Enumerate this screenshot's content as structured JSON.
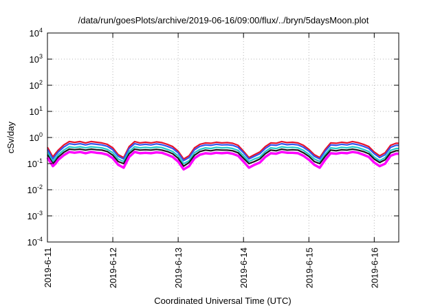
{
  "chart_data": {
    "type": "area",
    "title": "/data/run/goesPlots/archive/2019-06-16/09:00/flux/../bryn/5daysMoon.plot",
    "xlabel": "Coordinated Universal Time (UTC)",
    "ylabel": "cSv/day",
    "yscale": "log",
    "ylim": [
      0.0001,
      10000
    ],
    "xlim": [
      "2019-06-11 00:00",
      "2019-06-16 09:00"
    ],
    "grid": true,
    "y_ticks": [
      {
        "base": "10",
        "exp": "-4"
      },
      {
        "base": "10",
        "exp": "-3"
      },
      {
        "base": "10",
        "exp": "-2"
      },
      {
        "base": "10",
        "exp": "-1"
      },
      {
        "base": "10",
        "exp": "0"
      },
      {
        "base": "10",
        "exp": "1"
      },
      {
        "base": "10",
        "exp": "2"
      },
      {
        "base": "10",
        "exp": "3"
      },
      {
        "base": "10",
        "exp": "4"
      }
    ],
    "x_ticks": [
      "2019-6-11",
      "2019-6-12",
      "2019-6-13",
      "2019-6-14",
      "2019-6-15",
      "2019-6-16"
    ],
    "x": [
      "2019-06-11 00:00",
      "2019-06-11 02:00",
      "2019-06-11 03:00",
      "2019-06-11 04:00",
      "2019-06-11 06:00",
      "2019-06-11 08:00",
      "2019-06-11 10:00",
      "2019-06-11 12:00",
      "2019-06-11 14:00",
      "2019-06-11 16:00",
      "2019-06-11 18:00",
      "2019-06-11 20:00",
      "2019-06-11 22:00",
      "2019-06-12 00:00",
      "2019-06-12 02:00",
      "2019-06-12 04:00",
      "2019-06-12 06:00",
      "2019-06-12 08:00",
      "2019-06-12 10:00",
      "2019-06-12 12:00",
      "2019-06-12 14:00",
      "2019-06-12 16:00",
      "2019-06-12 18:00",
      "2019-06-12 20:00",
      "2019-06-12 22:00",
      "2019-06-13 00:00",
      "2019-06-13 02:00",
      "2019-06-13 04:00",
      "2019-06-13 06:00",
      "2019-06-13 08:00",
      "2019-06-13 10:00",
      "2019-06-13 12:00",
      "2019-06-13 14:00",
      "2019-06-13 16:00",
      "2019-06-13 18:00",
      "2019-06-13 20:00",
      "2019-06-13 22:00",
      "2019-06-14 00:00",
      "2019-06-14 02:00",
      "2019-06-14 04:00",
      "2019-06-14 06:00",
      "2019-06-14 08:00",
      "2019-06-14 10:00",
      "2019-06-14 12:00",
      "2019-06-14 14:00",
      "2019-06-14 16:00",
      "2019-06-14 18:00",
      "2019-06-14 20:00",
      "2019-06-14 22:00",
      "2019-06-15 00:00",
      "2019-06-15 02:00",
      "2019-06-15 04:00",
      "2019-06-15 06:00",
      "2019-06-15 08:00",
      "2019-06-15 10:00",
      "2019-06-15 12:00",
      "2019-06-15 14:00",
      "2019-06-15 16:00",
      "2019-06-15 18:00",
      "2019-06-15 20:00",
      "2019-06-15 22:00",
      "2019-06-16 00:00",
      "2019-06-16 02:00",
      "2019-06-16 04:00",
      "2019-06-16 06:00",
      "2019-06-16 08:00",
      "2019-06-16 09:00"
    ],
    "series": [
      {
        "color": "#e8102a",
        "values": [
          0.42,
          0.18,
          0.25,
          0.33,
          0.52,
          0.7,
          0.65,
          0.7,
          0.62,
          0.7,
          0.66,
          0.62,
          0.55,
          0.4,
          0.22,
          0.17,
          0.45,
          0.7,
          0.62,
          0.66,
          0.62,
          0.68,
          0.64,
          0.55,
          0.45,
          0.3,
          0.15,
          0.2,
          0.4,
          0.55,
          0.62,
          0.6,
          0.66,
          0.62,
          0.64,
          0.6,
          0.5,
          0.3,
          0.17,
          0.22,
          0.28,
          0.45,
          0.62,
          0.6,
          0.7,
          0.64,
          0.66,
          0.62,
          0.5,
          0.35,
          0.22,
          0.17,
          0.35,
          0.62,
          0.6,
          0.66,
          0.62,
          0.7,
          0.64,
          0.55,
          0.45,
          0.28,
          0.2,
          0.26,
          0.5,
          0.6,
          0.6
        ]
      },
      {
        "color": "#3355ee",
        "values": [
          0.35,
          0.15,
          0.21,
          0.28,
          0.43,
          0.58,
          0.54,
          0.58,
          0.52,
          0.58,
          0.55,
          0.52,
          0.46,
          0.34,
          0.19,
          0.15,
          0.38,
          0.58,
          0.52,
          0.55,
          0.52,
          0.57,
          0.53,
          0.46,
          0.38,
          0.26,
          0.13,
          0.17,
          0.34,
          0.46,
          0.52,
          0.5,
          0.55,
          0.52,
          0.53,
          0.5,
          0.42,
          0.26,
          0.15,
          0.19,
          0.24,
          0.38,
          0.52,
          0.5,
          0.58,
          0.53,
          0.55,
          0.52,
          0.42,
          0.3,
          0.19,
          0.15,
          0.3,
          0.52,
          0.5,
          0.55,
          0.52,
          0.58,
          0.53,
          0.46,
          0.38,
          0.24,
          0.17,
          0.22,
          0.42,
          0.5,
          0.5
        ]
      },
      {
        "color": "#22c9c9",
        "values": [
          0.27,
          0.12,
          0.16,
          0.22,
          0.33,
          0.44,
          0.41,
          0.44,
          0.4,
          0.44,
          0.42,
          0.4,
          0.35,
          0.26,
          0.15,
          0.12,
          0.29,
          0.44,
          0.4,
          0.42,
          0.4,
          0.43,
          0.41,
          0.35,
          0.29,
          0.2,
          0.1,
          0.13,
          0.26,
          0.35,
          0.4,
          0.38,
          0.42,
          0.4,
          0.41,
          0.38,
          0.32,
          0.2,
          0.12,
          0.15,
          0.18,
          0.29,
          0.4,
          0.38,
          0.44,
          0.41,
          0.42,
          0.4,
          0.32,
          0.23,
          0.15,
          0.12,
          0.23,
          0.4,
          0.38,
          0.42,
          0.4,
          0.44,
          0.41,
          0.35,
          0.29,
          0.18,
          0.13,
          0.17,
          0.32,
          0.38,
          0.38
        ]
      },
      {
        "color": "#1a1a1a",
        "values": [
          0.22,
          0.1,
          0.13,
          0.18,
          0.27,
          0.36,
          0.34,
          0.36,
          0.33,
          0.36,
          0.34,
          0.33,
          0.29,
          0.21,
          0.12,
          0.1,
          0.24,
          0.36,
          0.33,
          0.34,
          0.33,
          0.35,
          0.33,
          0.29,
          0.24,
          0.16,
          0.08,
          0.11,
          0.21,
          0.29,
          0.33,
          0.31,
          0.34,
          0.33,
          0.33,
          0.31,
          0.26,
          0.16,
          0.1,
          0.12,
          0.15,
          0.24,
          0.33,
          0.31,
          0.36,
          0.33,
          0.34,
          0.33,
          0.26,
          0.19,
          0.12,
          0.1,
          0.19,
          0.33,
          0.31,
          0.34,
          0.33,
          0.36,
          0.33,
          0.29,
          0.24,
          0.15,
          0.11,
          0.14,
          0.26,
          0.31,
          0.31
        ]
      },
      {
        "color": "#ff00ff",
        "values": [
          0.17,
          0.08,
          0.1,
          0.14,
          0.21,
          0.28,
          0.26,
          0.28,
          0.25,
          0.28,
          0.26,
          0.25,
          0.22,
          0.16,
          0.09,
          0.07,
          0.18,
          0.28,
          0.25,
          0.26,
          0.25,
          0.27,
          0.26,
          0.22,
          0.18,
          0.12,
          0.06,
          0.08,
          0.16,
          0.22,
          0.25,
          0.24,
          0.26,
          0.25,
          0.26,
          0.24,
          0.2,
          0.12,
          0.07,
          0.09,
          0.11,
          0.18,
          0.25,
          0.24,
          0.28,
          0.26,
          0.26,
          0.25,
          0.2,
          0.14,
          0.09,
          0.07,
          0.14,
          0.25,
          0.24,
          0.26,
          0.25,
          0.28,
          0.26,
          0.22,
          0.18,
          0.11,
          0.08,
          0.1,
          0.2,
          0.24,
          0.24
        ]
      }
    ]
  }
}
